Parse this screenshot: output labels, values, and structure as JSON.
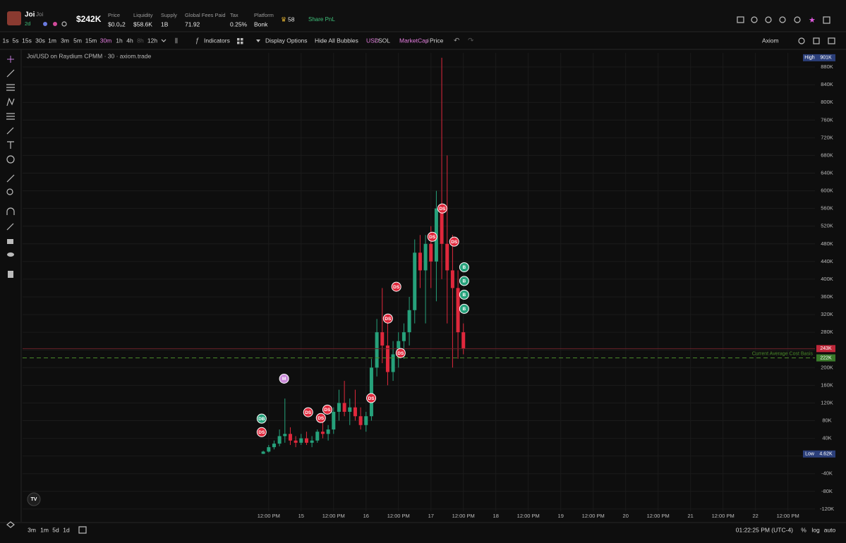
{
  "header": {
    "name": "Joi",
    "ticker": "Joi",
    "age": "2d",
    "market_cap": "$242K",
    "stats": [
      {
        "label": "Price",
        "value": "$0.0₃2"
      },
      {
        "label": "Liquidity",
        "value": "$58.6K"
      },
      {
        "label": "Supply",
        "value": "1B"
      },
      {
        "label": "Global Fees Paid",
        "value": "71.92"
      },
      {
        "label": "Tax",
        "value": "0.25%"
      },
      {
        "label": "Platform",
        "value": "Bonk"
      }
    ],
    "holders": "58",
    "share": "Share PnL"
  },
  "toolbar": {
    "timeframes": [
      "1s",
      "5s",
      "15s",
      "30s",
      "1m",
      "3m",
      "5m",
      "15m",
      "30m",
      "1h",
      "4h",
      "8h",
      "12h"
    ],
    "indicators": "Indicators",
    "display_options": "Display Options",
    "hide_bubbles": "Hide All Bubbles",
    "usd": "USD",
    "sol": "SOL",
    "marketcap": "MarketCap",
    "price": "Price",
    "source": "Axiom"
  },
  "footer": {
    "ranges": [
      "3m",
      "1m",
      "5d",
      "1d"
    ],
    "time": "01:22:25 PM (UTC-4)",
    "percent": "%",
    "log": "log",
    "auto": "auto"
  },
  "chart_data": {
    "type": "candlestick",
    "title": "Joi/USD on Raydium CPMM · 30 · axiom.trade",
    "up_color": "#26a17b",
    "down_color": "#e0283c",
    "x": [
      10,
      12,
      14,
      16,
      18,
      20,
      22,
      24,
      26,
      28,
      30,
      32,
      34,
      36,
      38,
      40,
      42,
      44,
      46,
      48,
      50,
      52,
      54,
      56,
      58,
      60,
      62,
      64,
      66,
      68,
      70,
      72,
      74,
      76,
      78,
      80,
      82,
      84
    ],
    "open": [
      5000,
      10000,
      20000,
      28000,
      45000,
      50000,
      35000,
      30000,
      40000,
      30000,
      35000,
      55000,
      50000,
      60000,
      100000,
      120000,
      100000,
      110000,
      90000,
      70000,
      90000,
      200000,
      280000,
      250000,
      190000,
      230000,
      260000,
      280000,
      330000,
      460000,
      420000,
      480000,
      440000,
      560000,
      480000,
      420000,
      380000,
      280000
    ],
    "high": [
      12000,
      25000,
      35000,
      60000,
      130000,
      65000,
      45000,
      50000,
      55000,
      45000,
      60000,
      80000,
      70000,
      110000,
      150000,
      170000,
      130000,
      150000,
      110000,
      100000,
      220000,
      310000,
      380000,
      300000,
      260000,
      280000,
      300000,
      360000,
      490000,
      500000,
      500000,
      520000,
      600000,
      901000,
      680000,
      500000,
      420000,
      300000
    ],
    "low": [
      4620,
      8000,
      15000,
      22000,
      30000,
      25000,
      20000,
      25000,
      25000,
      20000,
      30000,
      40000,
      35000,
      50000,
      80000,
      90000,
      70000,
      80000,
      60000,
      55000,
      80000,
      180000,
      210000,
      160000,
      170000,
      200000,
      220000,
      250000,
      300000,
      380000,
      300000,
      380000,
      350000,
      400000,
      300000,
      200000,
      220000,
      230000
    ],
    "close": [
      10000,
      20000,
      28000,
      45000,
      50000,
      35000,
      30000,
      40000,
      30000,
      35000,
      55000,
      50000,
      60000,
      100000,
      120000,
      100000,
      110000,
      90000,
      70000,
      90000,
      200000,
      280000,
      250000,
      190000,
      230000,
      260000,
      280000,
      330000,
      460000,
      420000,
      480000,
      440000,
      560000,
      480000,
      420000,
      380000,
      280000,
      243000
    ],
    "xlim": [
      -79,
      214
    ],
    "xticks": [
      {
        "value": 12,
        "label": "12:00 PM"
      },
      {
        "value": 24,
        "label": "15"
      },
      {
        "value": 36,
        "label": "12:00 PM"
      },
      {
        "value": 48,
        "label": "16"
      },
      {
        "value": 60,
        "label": "12:00 PM"
      },
      {
        "value": 72,
        "label": "17"
      },
      {
        "value": 84,
        "label": "12:00 PM"
      },
      {
        "value": 96,
        "label": "18"
      },
      {
        "value": 108,
        "label": "12:00 PM"
      },
      {
        "value": 120,
        "label": "19"
      },
      {
        "value": 132,
        "label": "12:00 PM"
      },
      {
        "value": 144,
        "label": "20"
      },
      {
        "value": 156,
        "label": "12:00 PM"
      },
      {
        "value": 168,
        "label": "21"
      },
      {
        "value": 180,
        "label": "12:00 PM"
      },
      {
        "value": 192,
        "label": "22"
      },
      {
        "value": 204,
        "label": "12:00 PM"
      }
    ],
    "ylim": [
      -125000,
      912000
    ],
    "yticks": [
      {
        "value": -120000,
        "label": "-120K"
      },
      {
        "value": -80000,
        "label": "-80K"
      },
      {
        "value": -40000,
        "label": "-40K"
      },
      0,
      {
        "value": 40000,
        "label": "40K"
      },
      {
        "value": 80000,
        "label": "80K"
      },
      {
        "value": 120000,
        "label": "120K"
      },
      {
        "value": 160000,
        "label": "160K"
      },
      {
        "value": 200000,
        "label": "200K"
      },
      {
        "value": 240000,
        "label": "240K"
      },
      {
        "value": 280000,
        "label": "280K"
      },
      {
        "value": 320000,
        "label": "320K"
      },
      {
        "value": 360000,
        "label": "360K"
      },
      {
        "value": 400000,
        "label": "400K"
      },
      {
        "value": 440000,
        "label": "440K"
      },
      {
        "value": 480000,
        "label": "480K"
      },
      {
        "value": 520000,
        "label": "520K"
      },
      {
        "value": 560000,
        "label": "560K"
      },
      {
        "value": 600000,
        "label": "600K"
      },
      {
        "value": 640000,
        "label": "640K"
      },
      {
        "value": 680000,
        "label": "680K"
      },
      {
        "value": 720000,
        "label": "720K"
      },
      {
        "value": 760000,
        "label": "760K"
      },
      {
        "value": 800000,
        "label": "800K"
      },
      {
        "value": 840000,
        "label": "840K"
      },
      {
        "value": 880000,
        "label": "880K"
      }
    ],
    "grid": true,
    "price_tags": [
      {
        "name": "High",
        "value": 901000,
        "label": "901K",
        "color": "#2b3f7a"
      },
      {
        "value": 243000,
        "label": "243K",
        "color": "#c0283a"
      },
      {
        "name": "Current Average Cost Basis",
        "value": 222000,
        "label": "222K",
        "color": "#3a7a2a"
      },
      {
        "name": "Low",
        "value": 4620,
        "label": "4.62K",
        "color": "#2b3f7a"
      }
    ],
    "bubble_colors": {
      "DS": "#e0283c",
      "DB": "#26a17b",
      "M": "#c98ad8",
      "B": "#26a17b"
    },
    "bubbles": [
      {
        "label": "DB",
        "x": 9.4,
        "y": 84500
      },
      {
        "label": "DS",
        "x": 9.4,
        "y": 54000
      },
      {
        "label": "M",
        "x": 17.7,
        "y": 175000
      },
      {
        "label": "DS",
        "x": 26.6,
        "y": 99000
      },
      {
        "label": "DS",
        "x": 31.3,
        "y": 86000
      },
      {
        "label": "DS",
        "x": 33.7,
        "y": 105000
      },
      {
        "label": "DS",
        "x": 49.9,
        "y": 131000
      },
      {
        "label": "DS",
        "x": 56.1,
        "y": 311000
      },
      {
        "label": "DS",
        "x": 59.2,
        "y": 383000
      },
      {
        "label": "DS",
        "x": 60.8,
        "y": 233000
      },
      {
        "label": "DS",
        "x": 72.5,
        "y": 496000
      },
      {
        "label": "DS",
        "x": 76.2,
        "y": 560000
      },
      {
        "label": "DS",
        "x": 80.6,
        "y": 485000
      },
      {
        "label": "B",
        "x": 84.3,
        "y": 427000
      },
      {
        "label": "B",
        "x": 84.3,
        "y": 396000
      },
      {
        "label": "B",
        "x": 84.3,
        "y": 365000
      },
      {
        "label": "B",
        "x": 84.3,
        "y": 333000
      }
    ]
  }
}
